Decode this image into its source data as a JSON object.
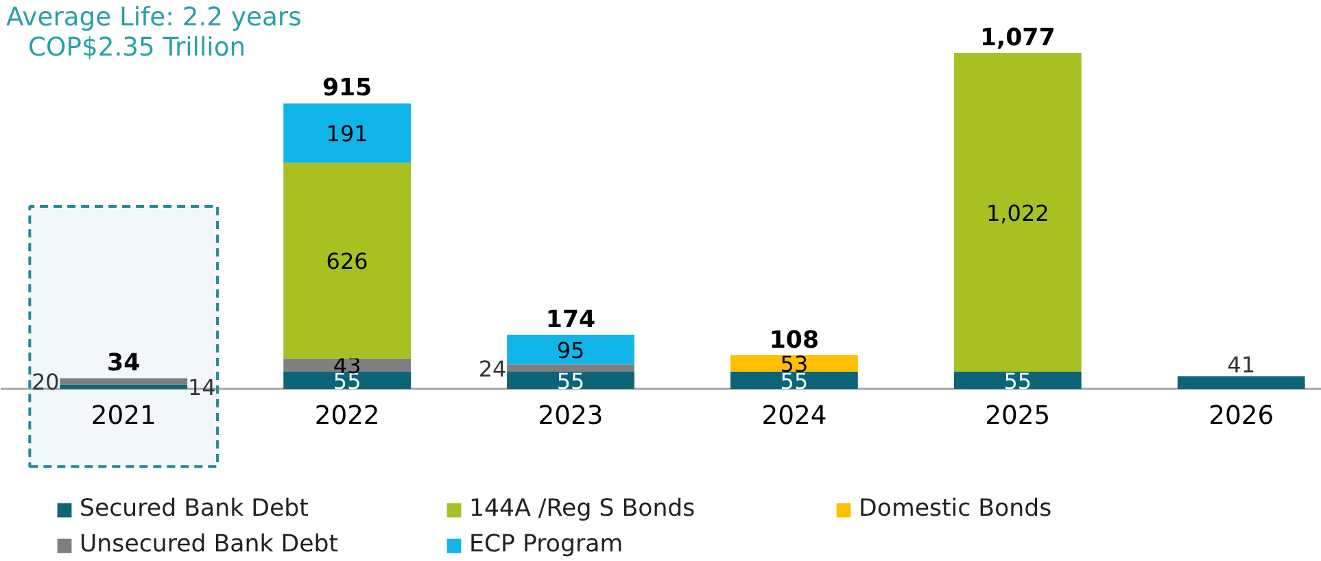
{
  "chart_data": {
    "type": "bar",
    "title": "Average Life: 2.2 years",
    "subtitle": "COP$2.35 Trillion",
    "categories": [
      "2021",
      "2022",
      "2023",
      "2024",
      "2025",
      "2026"
    ],
    "stacked": true,
    "series": [
      {
        "name": "Secured Bank Debt",
        "color": "#0b6477",
        "values": [
          14,
          55,
          55,
          55,
          55,
          41
        ],
        "value_labels": [
          "14",
          "55",
          "55",
          "55",
          "55",
          "41"
        ]
      },
      {
        "name": "Unsecured Bank Debt",
        "color": "#7f7f7f",
        "values": [
          20,
          43,
          24,
          null,
          null,
          null
        ],
        "value_labels": [
          "20",
          "43",
          "24",
          null,
          null,
          null
        ]
      },
      {
        "name": "144A /Reg S Bonds",
        "color": "#a9c023",
        "values": [
          null,
          626,
          null,
          null,
          1022,
          null
        ],
        "value_labels": [
          null,
          "626",
          null,
          null,
          "1,022",
          null
        ]
      },
      {
        "name": "ECP Program",
        "color": "#12b5ea",
        "values": [
          null,
          191,
          95,
          null,
          null,
          null
        ],
        "value_labels": [
          null,
          "191",
          "95",
          null,
          null,
          null
        ]
      },
      {
        "name": "Domestic Bonds",
        "color": "#ffc000",
        "values": [
          null,
          null,
          null,
          53,
          null,
          null
        ],
        "value_labels": [
          null,
          null,
          null,
          "53",
          null,
          null
        ]
      }
    ],
    "totals": [
      "34",
      "915",
      "174",
      "108",
      "1,077",
      null
    ],
    "bands": [
      {
        "axis": "x",
        "from": "2021",
        "to": "2021",
        "color": "#1f8a96"
      }
    ],
    "tick_labels": "x",
    "legend": "bottom"
  }
}
